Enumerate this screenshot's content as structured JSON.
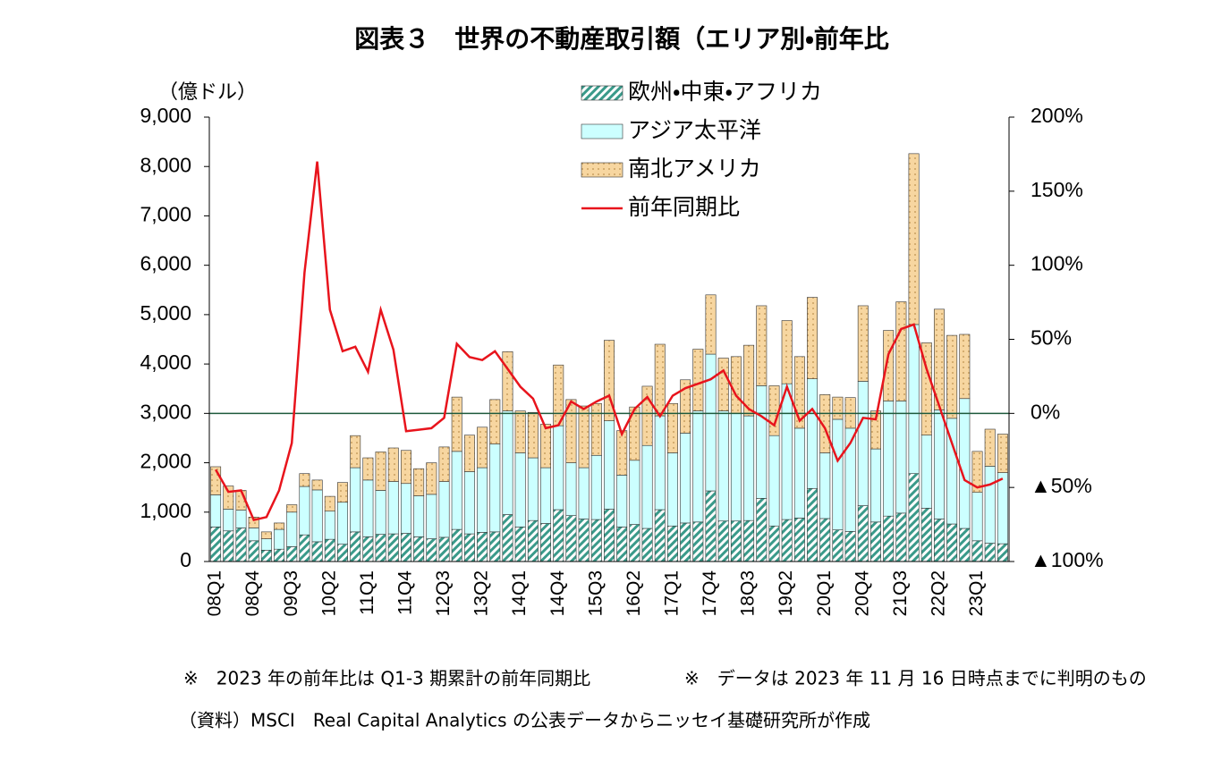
{
  "chart_data": {
    "type": "bar",
    "title": "図表３　世界の不動産取引額（エリア別・前年比",
    "y_label": "（億ドル）",
    "categories": [
      "08Q1",
      null,
      null,
      "08Q4",
      null,
      null,
      "09Q3",
      null,
      null,
      "10Q2",
      null,
      null,
      "11Q1",
      null,
      null,
      "11Q4",
      null,
      null,
      "12Q3",
      null,
      null,
      "13Q2",
      null,
      null,
      "14Q1",
      null,
      null,
      "14Q4",
      null,
      null,
      "15Q3",
      null,
      null,
      "16Q2",
      null,
      null,
      "17Q1",
      null,
      null,
      "17Q4",
      null,
      null,
      "18Q3",
      null,
      null,
      "19Q2",
      null,
      null,
      "20Q1",
      null,
      null,
      "20Q4",
      null,
      null,
      "21Q3",
      null,
      null,
      "22Q2",
      null,
      null,
      "23Q1",
      null,
      null
    ],
    "series": [
      {
        "name": "欧州・中東・アフリカ",
        "color": "#3a9a8a",
        "pattern": "hatch",
        "values": [
          700,
          620,
          680,
          420,
          230,
          250,
          300,
          540,
          400,
          450,
          350,
          600,
          500,
          550,
          560,
          570,
          500,
          460,
          490,
          650,
          560,
          590,
          600,
          950,
          700,
          830,
          770,
          1050,
          930,
          860,
          850,
          1060,
          700,
          750,
          670,
          1050,
          720,
          780,
          800,
          1430,
          820,
          820,
          830,
          1280,
          720,
          850,
          880,
          1480,
          870,
          640,
          610,
          1130,
          800,
          920,
          980,
          1780,
          1080,
          860,
          760,
          670,
          420,
          370,
          360
        ]
      },
      {
        "name": "アジア太平洋",
        "color": "#ccffff",
        "values": [
          650,
          440,
          360,
          260,
          230,
          400,
          700,
          980,
          1050,
          570,
          850,
          1300,
          1150,
          890,
          1060,
          1010,
          830,
          900,
          1130,
          1580,
          1260,
          1310,
          1780,
          2100,
          1500,
          1270,
          1130,
          1700,
          1070,
          1040,
          1300,
          1790,
          1050,
          1300,
          1680,
          1900,
          1480,
          1820,
          2250,
          2770,
          2230,
          2180,
          2120,
          2280,
          1830,
          2750,
          1820,
          2220,
          1330,
          2240,
          2090,
          2520,
          1480,
          2330,
          2270,
          3020,
          1480,
          2210,
          2140,
          2630,
          980,
          1560,
          1440
        ]
      },
      {
        "name": "南北アメリカ",
        "color": "#f7d6a0",
        "pattern": "dots",
        "values": [
          570,
          470,
          400,
          220,
          140,
          130,
          150,
          260,
          200,
          300,
          400,
          650,
          450,
          780,
          680,
          670,
          550,
          640,
          700,
          1100,
          740,
          820,
          900,
          1200,
          850,
          920,
          880,
          1230,
          1280,
          1250,
          1050,
          1630,
          900,
          1080,
          1200,
          1450,
          1000,
          1080,
          1250,
          1200,
          1070,
          1150,
          1430,
          1620,
          1010,
          1280,
          1450,
          1650,
          1180,
          450,
          620,
          1530,
          770,
          1430,
          2010,
          3460,
          1870,
          2040,
          1680,
          1300,
          830,
          750,
          780
        ]
      },
      {
        "name": "前年同期比",
        "color": "#e8141c",
        "type": "line",
        "axis": "y2",
        "values": [
          -38,
          -53,
          -52,
          -72,
          -70,
          -52,
          -20,
          95,
          170,
          70,
          42,
          45,
          28,
          70,
          43,
          -12,
          -11,
          -10,
          -3,
          47,
          38,
          36,
          42,
          30,
          18,
          10,
          -10,
          -8,
          8,
          3,
          8,
          12,
          -14,
          3,
          11,
          -2,
          12,
          17,
          20,
          23,
          29,
          12,
          3,
          -2,
          -8,
          18,
          -5,
          3,
          -10,
          -32,
          -20,
          -3,
          -4,
          40,
          57,
          60,
          30,
          5,
          -20,
          -45,
          -50,
          -48,
          -44
        ]
      }
    ],
    "ylim": [
      0,
      9000
    ],
    "yticks": [
      0,
      {
        "value": 1000,
        "label": "1,000"
      },
      {
        "value": 2000,
        "label": "2,000"
      },
      {
        "value": 3000,
        "label": "3,000"
      },
      {
        "value": 4000,
        "label": "4,000"
      },
      {
        "value": 5000,
        "label": "5,000"
      },
      {
        "value": 6000,
        "label": "6,000"
      },
      {
        "value": 7000,
        "label": "7,000"
      },
      {
        "value": 8000,
        "label": "8,000"
      },
      {
        "value": 9000,
        "label": "9,000"
      }
    ],
    "y2lim": [
      -100,
      200
    ],
    "y2ticks": [
      {
        "value": -100,
        "label": "▲100%"
      },
      {
        "value": -50,
        "label": "▲50%"
      },
      {
        "value": 0,
        "label": "0%"
      },
      {
        "value": 50,
        "label": "50%"
      },
      {
        "value": 100,
        "label": "100%"
      },
      {
        "value": 150,
        "label": "150%"
      },
      {
        "value": 200,
        "label": "200%"
      }
    ],
    "legend": "top-right",
    "notes": [
      "※　2023 年の前年比は Q1-3 期累計の前年同期比",
      "※　データは 2023 年 11 月 16 日時点までに判明のもの"
    ],
    "source": "（資料）MSCI　Real Capital Analytics の公表データからニッセイ基礎研究所が作成"
  }
}
